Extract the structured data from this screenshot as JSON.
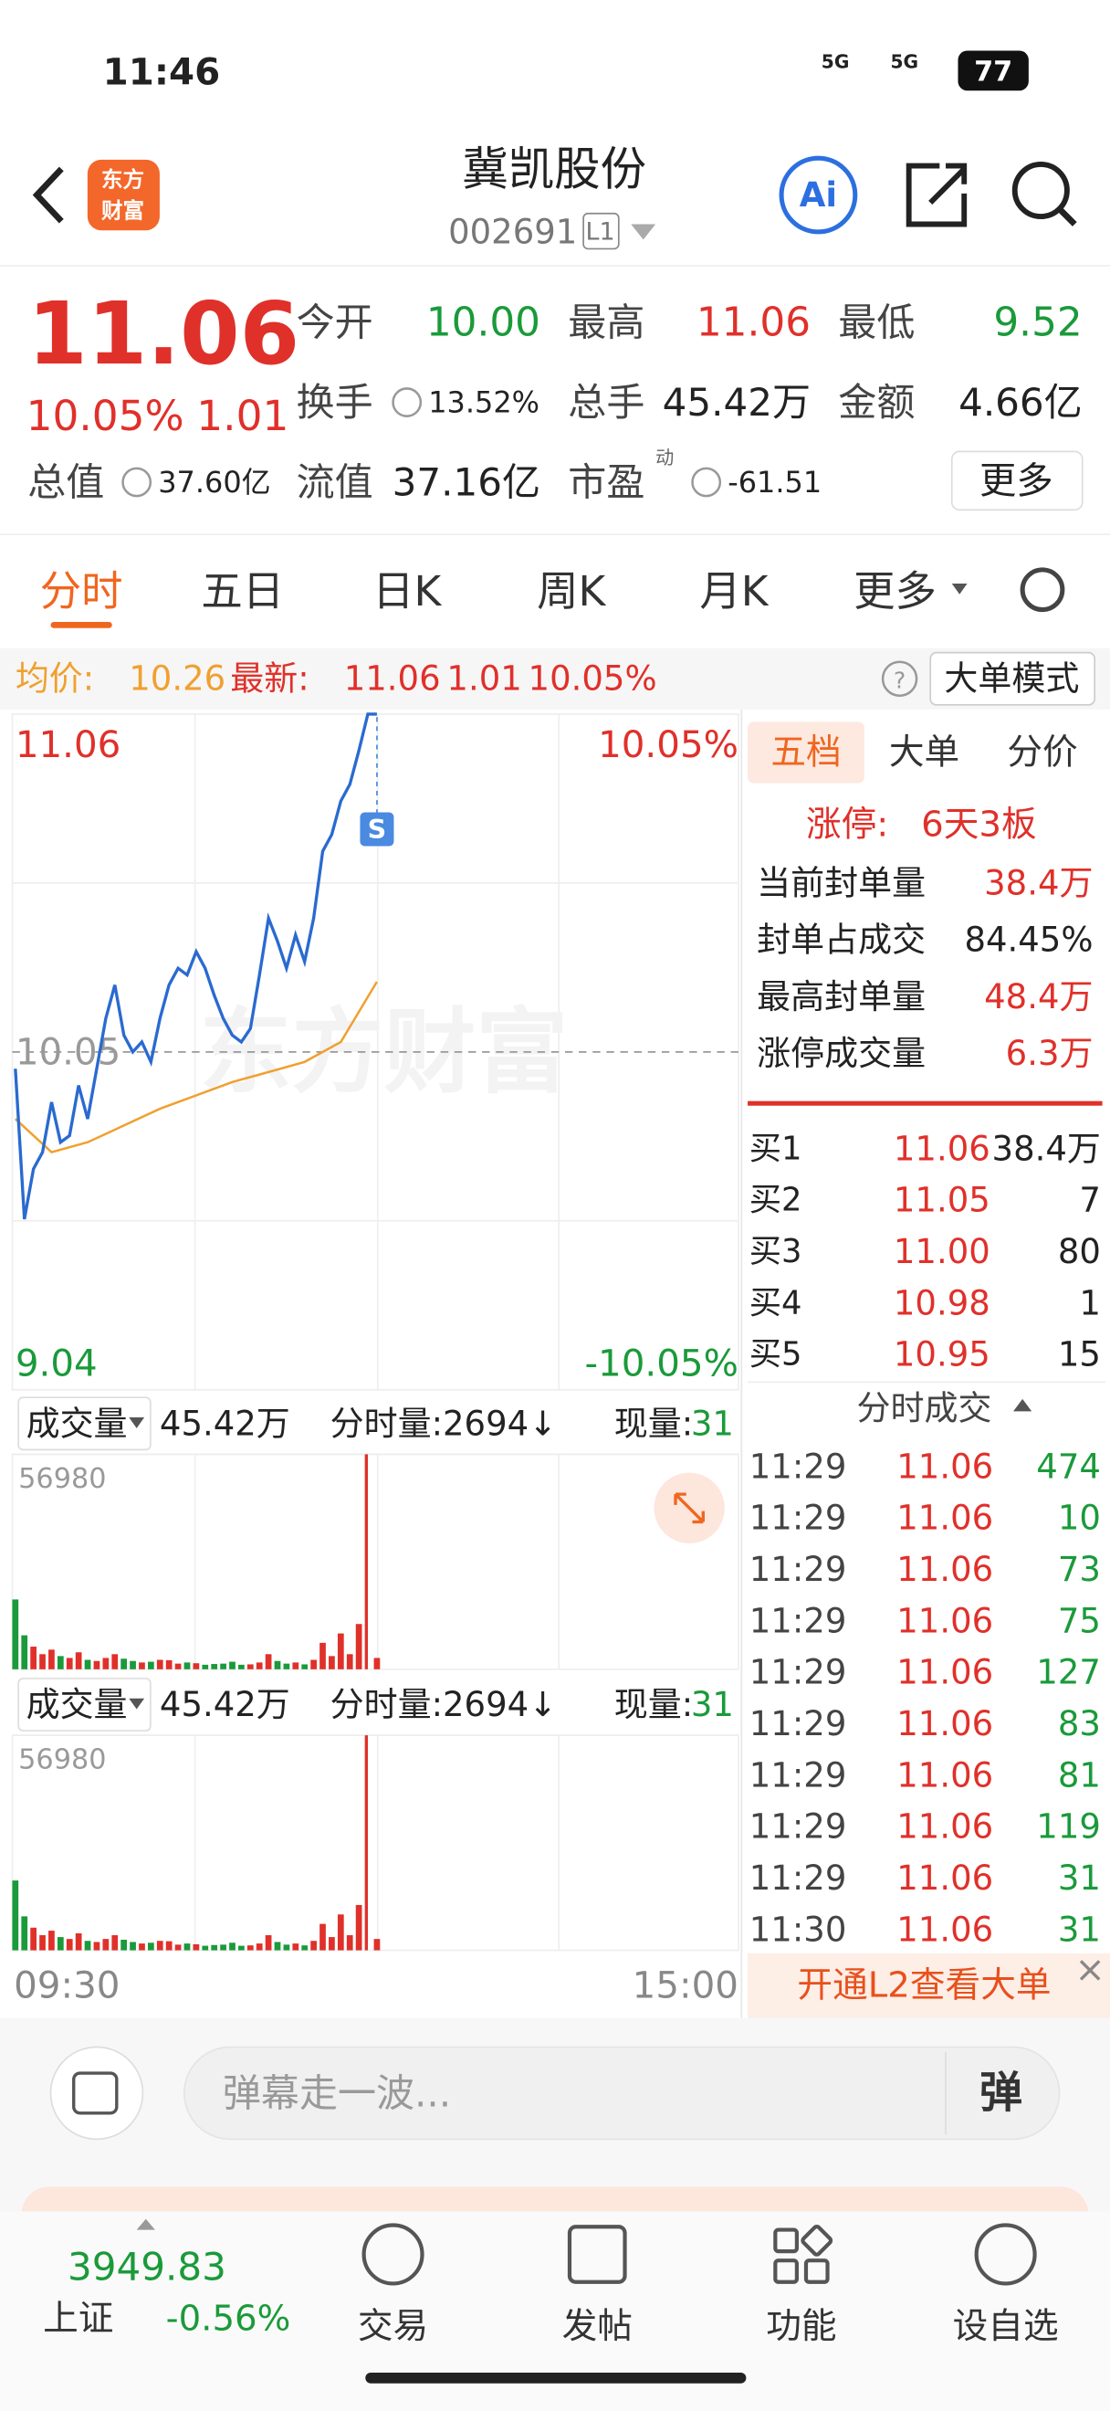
{
  "status_bar": {
    "time": "11:46",
    "signal1": "5G",
    "signal2": "5G",
    "battery": "77"
  },
  "header": {
    "logo_top": "东方",
    "logo_bottom": "财富",
    "name": "冀凯股份",
    "code": "002691",
    "level": "L1",
    "ai_badge": "Ai"
  },
  "quote": {
    "price": "11.06",
    "pct": "10.05%",
    "change": "1.01",
    "fields": [
      {
        "label": "今开",
        "value": "10.00"
      },
      {
        "label": "最高",
        "value": "11.06"
      },
      {
        "label": "最低",
        "value": "9.52"
      },
      {
        "label": "换手",
        "value": "13.52%"
      },
      {
        "label": "总手",
        "value": "45.42万"
      },
      {
        "label": "金额",
        "value": "4.66亿"
      },
      {
        "label": "总值",
        "value": "37.60亿"
      },
      {
        "label": "流值",
        "value": "37.16亿"
      },
      {
        "label": "市盈",
        "value": "-61.51",
        "sup": "动"
      }
    ],
    "more": "更多"
  },
  "tabs": [
    "分时",
    "五日",
    "日K",
    "周K",
    "月K",
    "更多"
  ],
  "info_bar": {
    "avg_label": "均价:",
    "avg": "10.26",
    "last_label": "最新:",
    "last": "11.06",
    "change": "1.01",
    "pct": "10.05%",
    "help": "?",
    "mode": "大单模式"
  },
  "intraday": {
    "yticks": [
      11.06,
      10.05,
      9.04
    ],
    "pct_top": "10.05%",
    "pct_bottom": "-10.05%",
    "watermark": "东方财富",
    "signal_marker": "S",
    "price": [
      10.0,
      9.55,
      9.7,
      9.75,
      9.9,
      9.78,
      9.8,
      9.95,
      9.85,
      10.0,
      10.15,
      10.25,
      10.1,
      10.05,
      10.08,
      10.02,
      10.15,
      10.25,
      10.3,
      10.28,
      10.35,
      10.3,
      10.22,
      10.15,
      10.1,
      10.08,
      10.12,
      10.28,
      10.45,
      10.38,
      10.3,
      10.4,
      10.32,
      10.45,
      10.65,
      10.7,
      10.8,
      10.85,
      10.95,
      11.06,
      11.06
    ],
    "avg": [
      9.85,
      9.75,
      9.78,
      9.83,
      9.88,
      9.92,
      9.96,
      9.99,
      10.02,
      10.08,
      10.26
    ],
    "x_start": "09:30",
    "x_end": "15:00"
  },
  "volume": {
    "label": "成交量",
    "total": "45.42万",
    "minute": "分时量:2694↓",
    "now_label": "现量:",
    "now": "31",
    "ymax": 56980,
    "values": [
      18500,
      9000,
      6000,
      4000,
      5200,
      3500,
      3000,
      4500,
      2500,
      2200,
      3000,
      4000,
      2800,
      2200,
      1800,
      2000,
      2500,
      2400,
      1500,
      1800,
      1600,
      1200,
      1400,
      1500,
      2000,
      1200,
      1300,
      1800,
      4000,
      2200,
      1500,
      1800,
      1300,
      2500,
      7000,
      3500,
      9500,
      4000,
      12000,
      56980,
      3000
    ]
  },
  "side": {
    "tabs": [
      "五档",
      "大单",
      "分价"
    ],
    "limit_label": "涨停:",
    "limit_value": "6天3板",
    "rows": [
      [
        "当前封单量",
        "38.4万"
      ],
      [
        "封单占成交",
        "84.45%"
      ],
      [
        "最高封单量",
        "48.4万"
      ],
      [
        "涨停成交量",
        "6.3万"
      ]
    ],
    "bids": [
      [
        "买1",
        "11.06",
        "38.4万"
      ],
      [
        "买2",
        "11.05",
        "7"
      ],
      [
        "买3",
        "11.00",
        "80"
      ],
      [
        "买4",
        "10.98",
        "1"
      ],
      [
        "买5",
        "10.95",
        "15"
      ]
    ],
    "trades_title": "分时成交",
    "trades": [
      [
        "11:29",
        "11.06",
        "474"
      ],
      [
        "11:29",
        "11.06",
        "10"
      ],
      [
        "11:29",
        "11.06",
        "73"
      ],
      [
        "11:29",
        "11.06",
        "75"
      ],
      [
        "11:29",
        "11.06",
        "127"
      ],
      [
        "11:29",
        "11.06",
        "83"
      ],
      [
        "11:29",
        "11.06",
        "81"
      ],
      [
        "11:29",
        "11.06",
        "119"
      ],
      [
        "11:29",
        "11.06",
        "31"
      ],
      [
        "11:30",
        "11.06",
        "31"
      ]
    ],
    "banner": "开通L2查看大单"
  },
  "comment": {
    "placeholder": "弹幕走一波...",
    "button": "弹"
  },
  "bottom_nav": {
    "index_value": "3949.83",
    "index_name": "上证",
    "index_pct": "-0.56%",
    "items": [
      "交易",
      "发帖",
      "功能",
      "设自选"
    ]
  }
}
